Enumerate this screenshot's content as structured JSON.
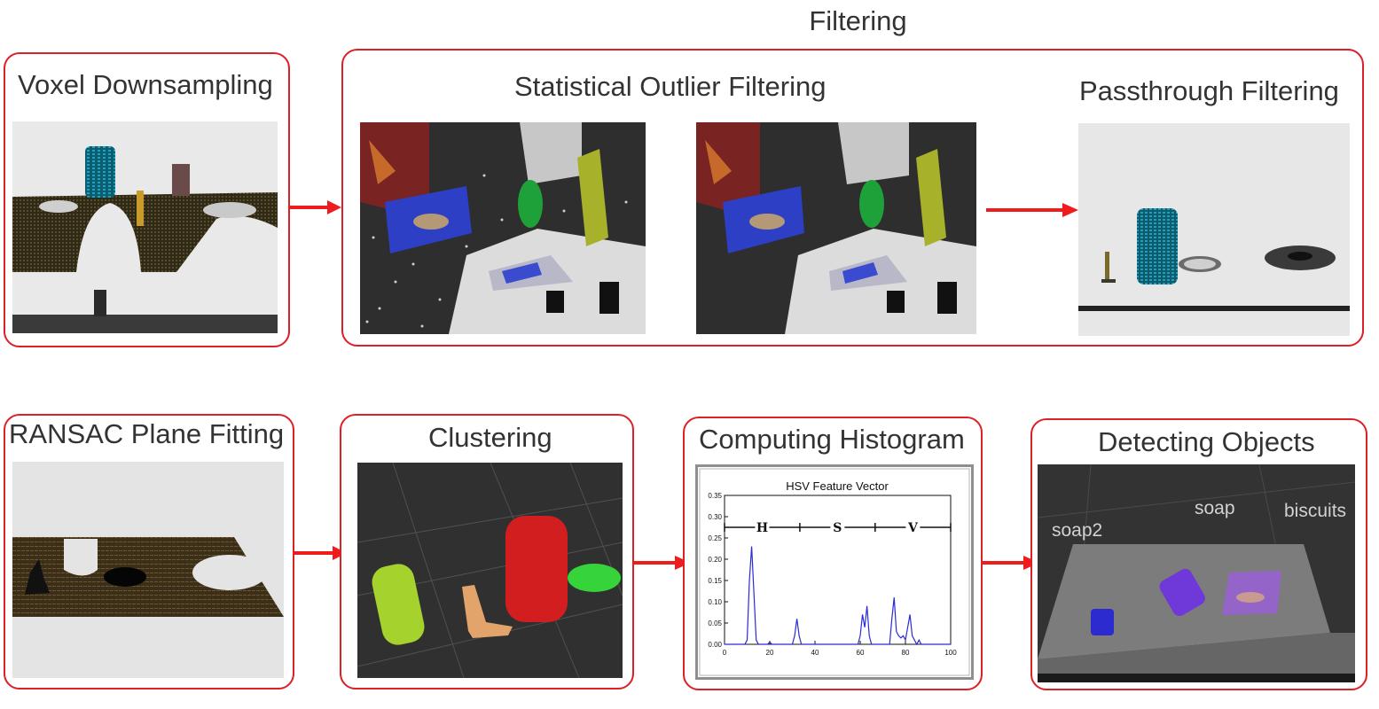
{
  "header": {
    "title": "Filtering"
  },
  "steps": {
    "voxel": {
      "title": "Voxel Downsampling"
    },
    "sof": {
      "title": "Statistical Outlier Filtering"
    },
    "passthrough": {
      "title": "Passthrough Filtering"
    },
    "ransac": {
      "title": "RANSAC Plane Fitting"
    },
    "clustering": {
      "title": "Clustering"
    },
    "histogram": {
      "title": "Computing Histogram",
      "plot_title": "HSV Feature Vector",
      "channels": [
        "H",
        "S",
        "V"
      ]
    },
    "detecting": {
      "title": "Detecting Objects",
      "labels": [
        "soap2",
        "soap",
        "biscuits"
      ]
    }
  },
  "colors": {
    "accent": "#dd1f26",
    "plot_line": "#2b2bd8"
  },
  "chart_data": {
    "type": "line",
    "title": "HSV Feature Vector",
    "xlim": [
      0,
      100
    ],
    "ylim": [
      0,
      0.35
    ],
    "x_ticks": [
      0,
      20,
      40,
      60,
      80,
      100
    ],
    "y_ticks": [
      0.0,
      0.05,
      0.1,
      0.15,
      0.2,
      0.25,
      0.3,
      0.35
    ],
    "series": [
      {
        "points": [
          [
            0,
            0.0
          ],
          [
            9,
            0.0
          ],
          [
            10,
            0.01
          ],
          [
            11,
            0.15
          ],
          [
            12,
            0.23
          ],
          [
            13,
            0.12
          ],
          [
            14,
            0.01
          ],
          [
            15,
            0.0
          ],
          [
            19,
            0.0
          ],
          [
            20,
            0.005
          ],
          [
            21,
            0.0
          ],
          [
            30,
            0.0
          ],
          [
            31,
            0.02
          ],
          [
            32,
            0.06
          ],
          [
            33,
            0.02
          ],
          [
            34,
            0.0
          ],
          [
            59,
            0.0
          ],
          [
            60,
            0.02
          ],
          [
            61,
            0.07
          ],
          [
            62,
            0.04
          ],
          [
            63,
            0.09
          ],
          [
            64,
            0.02
          ],
          [
            65,
            0.0
          ],
          [
            73,
            0.0
          ],
          [
            74,
            0.06
          ],
          [
            75,
            0.11
          ],
          [
            76,
            0.03
          ],
          [
            77,
            0.02
          ],
          [
            78,
            0.015
          ],
          [
            79,
            0.02
          ],
          [
            80,
            0.01
          ],
          [
            81,
            0.04
          ],
          [
            82,
            0.07
          ],
          [
            83,
            0.02
          ],
          [
            84,
            0.01
          ],
          [
            85,
            0.0
          ],
          [
            86,
            0.01
          ],
          [
            87,
            0.0
          ],
          [
            100,
            0.0
          ]
        ]
      }
    ]
  }
}
